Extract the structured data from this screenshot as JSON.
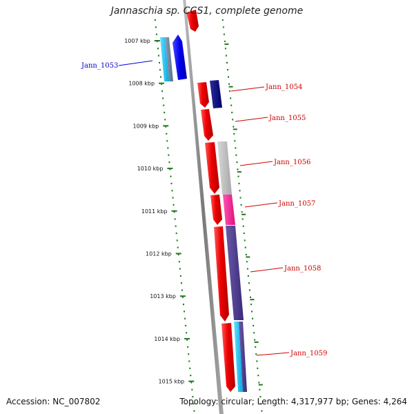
{
  "title": "Jannaschia sp. CCS1, complete genome",
  "footer": {
    "accession": "Accession: NC_007802",
    "summary": "Topology: circular; Length: 4,317,977 bp; Genes: 4,264"
  },
  "ticks": [
    {
      "label": "1007 kbp"
    },
    {
      "label": "1008 kbp"
    },
    {
      "label": "1009 kbp"
    },
    {
      "label": "1010 kbp"
    },
    {
      "label": "1011 kbp"
    },
    {
      "label": "1012 kbp"
    },
    {
      "label": "1013 kbp"
    },
    {
      "label": "1014 kbp"
    },
    {
      "label": "1015 kbp"
    }
  ],
  "genes": [
    {
      "id": "Jann_1053",
      "label": "Jann_1053",
      "color": "#0000cc"
    },
    {
      "id": "Jann_1054",
      "label": "Jann_1054",
      "color": "#cc0000"
    },
    {
      "id": "Jann_1055",
      "label": "Jann_1055",
      "color": "#cc0000"
    },
    {
      "id": "Jann_1056",
      "label": "Jann_1056",
      "color": "#cc0000"
    },
    {
      "id": "Jann_1057",
      "label": "Jann_1057",
      "color": "#cc0000"
    },
    {
      "id": "Jann_1058",
      "label": "Jann_1058",
      "color": "#cc0000"
    },
    {
      "id": "Jann_1059",
      "label": "Jann_1059",
      "color": "#cc0000"
    }
  ],
  "colors": {
    "backbone": "#8a8a8a",
    "tick": "#1a7a1a",
    "forward_strand": "#ee0000",
    "reverse_strand": "#0000ee"
  }
}
